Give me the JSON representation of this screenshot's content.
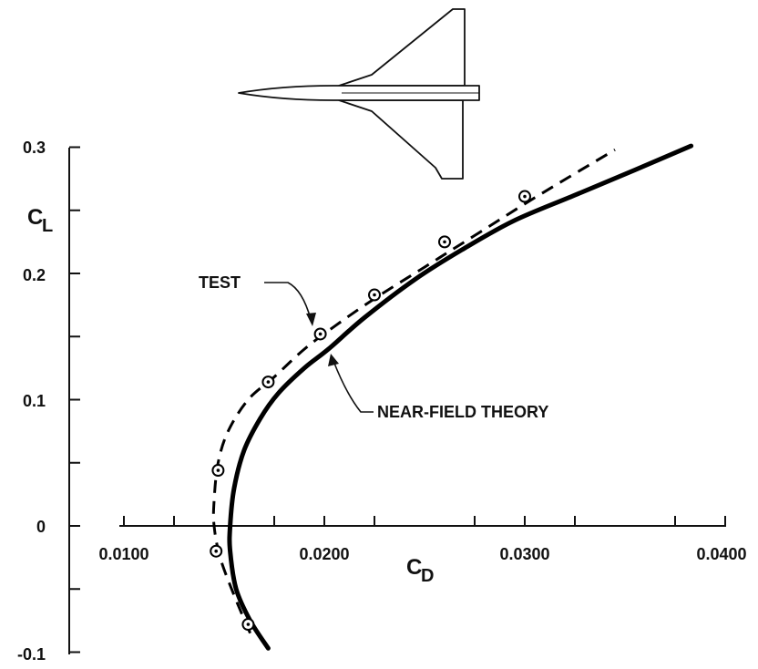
{
  "chart_data": {
    "type": "line",
    "xlabel": {
      "main": "C",
      "sub": "D"
    },
    "ylabel": {
      "main": "C",
      "sub": "L"
    },
    "xlim": [
      0.01,
      0.04
    ],
    "ylim": [
      -0.1,
      0.3
    ],
    "x_ticks": [
      {
        "value": 0.01,
        "label": "0.0100"
      },
      {
        "value": 0.02,
        "label": "0.0200"
      },
      {
        "value": 0.03,
        "label": "0.0300"
      },
      {
        "value": 0.04,
        "label": "0.0400"
      }
    ],
    "y_ticks": [
      {
        "value": -0.1,
        "label": "-0.1"
      },
      {
        "value": 0,
        "label": "0"
      },
      {
        "value": 0.1,
        "label": "0.1"
      },
      {
        "value": 0.2,
        "label": "0.2"
      },
      {
        "value": 0.3,
        "label": "0.3"
      }
    ],
    "series": [
      {
        "name": "NEAR-FIELD THEORY",
        "style": "solid",
        "color": "#000000",
        "x": [
          0.0172,
          0.0163,
          0.0156,
          0.0153,
          0.0153,
          0.0155,
          0.016,
          0.0168,
          0.0177,
          0.019,
          0.0202,
          0.022,
          0.0245,
          0.027,
          0.0295,
          0.0325,
          0.0355,
          0.0383
        ],
        "y": [
          -0.097,
          -0.075,
          -0.05,
          -0.02,
          0.0,
          0.03,
          0.06,
          0.085,
          0.105,
          0.125,
          0.14,
          0.165,
          0.195,
          0.22,
          0.242,
          0.262,
          0.282,
          0.301
        ]
      },
      {
        "name": "TEST",
        "style": "dashed",
        "color": "#000000",
        "x": [
          0.0163,
          0.0155,
          0.0148,
          0.0145,
          0.0145,
          0.0147,
          0.0152,
          0.0162,
          0.0175,
          0.019,
          0.0205,
          0.0225,
          0.025,
          0.0275,
          0.0305,
          0.0345
        ],
        "y": [
          -0.085,
          -0.055,
          -0.025,
          0.0,
          0.02,
          0.05,
          0.075,
          0.1,
          0.118,
          0.14,
          0.158,
          0.18,
          0.205,
          0.23,
          0.26,
          0.298
        ]
      },
      {
        "name": "TEST",
        "type": "scatter",
        "marker": "circle-dot",
        "x": [
          0.0162,
          0.0146,
          0.0147,
          0.0172,
          0.0198,
          0.0225,
          0.026,
          0.03
        ],
        "y": [
          -0.078,
          -0.02,
          0.044,
          0.114,
          0.152,
          0.183,
          0.225,
          0.261
        ]
      }
    ],
    "annotations": [
      {
        "text": "TEST",
        "points_to": "dashed test curve"
      },
      {
        "text": "NEAR-FIELD THEORY",
        "points_to": "solid theory curve"
      }
    ],
    "inset": {
      "icon": "delta-wing-aircraft-planform-icon"
    },
    "grid": false
  }
}
